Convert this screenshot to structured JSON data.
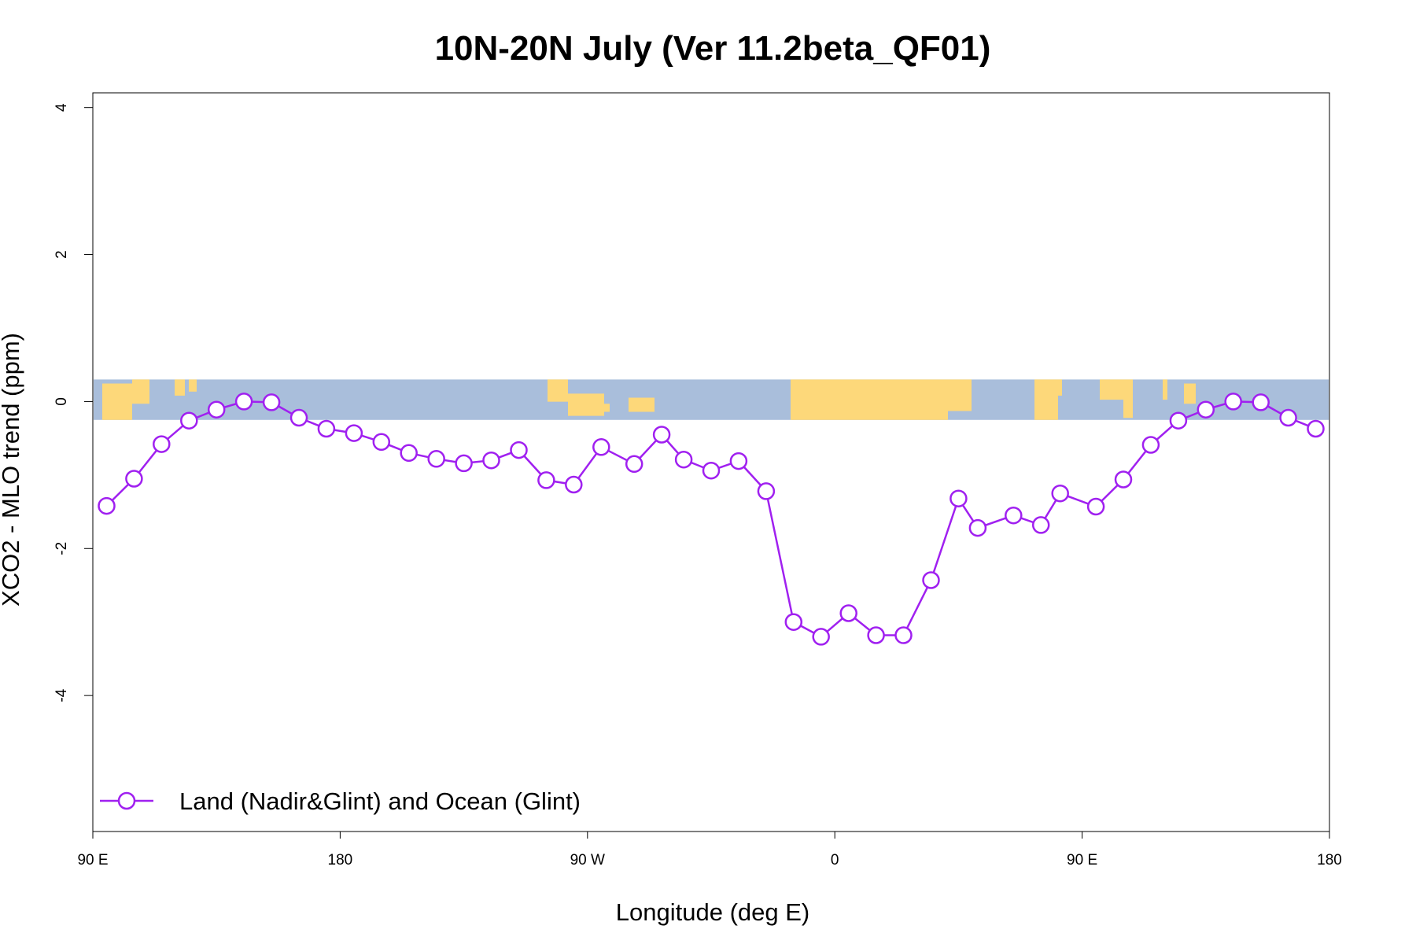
{
  "chart_data": {
    "type": "line",
    "title": "10N-20N July (Ver 11.2beta_QF01)",
    "xlabel": "Longitude (deg E)",
    "ylabel": "XCO2 - MLO trend (ppm)",
    "xlim": [
      90,
      540
    ],
    "ylim": [
      -5.85,
      4.2
    ],
    "x_ticks": [
      {
        "value": 90,
        "label": "90 E"
      },
      {
        "value": 180,
        "label": "180"
      },
      {
        "value": 270,
        "label": "90 W"
      },
      {
        "value": 360,
        "label": "0"
      },
      {
        "value": 450,
        "label": "90 E"
      },
      {
        "value": 540,
        "label": "180"
      }
    ],
    "y_ticks": [
      {
        "value": 4,
        "label": "4"
      },
      {
        "value": 2,
        "label": "2"
      },
      {
        "value": 0,
        "label": "0"
      },
      {
        "value": -2,
        "label": "-2"
      },
      {
        "value": -4,
        "label": "-4"
      }
    ],
    "grid": false,
    "legend_position": "bottom-left",
    "map_strip": {
      "y_top": 0.3,
      "y_bottom": -0.25,
      "ocean_color": "#a9bedb",
      "land_color": "#fdd87a"
    },
    "series": [
      {
        "name": "Land (Nadir&Glint) and Ocean (Glint)",
        "color": "#a020f0",
        "marker": "open-circle",
        "x": [
          95,
          105,
          115,
          125,
          135,
          145,
          155,
          165,
          175,
          185,
          195,
          205,
          215,
          225,
          235,
          245,
          255,
          265,
          275,
          287,
          297,
          305,
          315,
          325,
          335,
          345,
          355,
          365,
          375,
          385,
          395,
          405,
          412,
          425,
          435,
          442,
          455,
          465,
          475,
          485,
          495,
          505,
          515,
          525,
          535
        ],
        "values": [
          -1.42,
          -1.05,
          -0.58,
          -0.26,
          -0.11,
          0.0,
          -0.01,
          -0.22,
          -0.37,
          -0.43,
          -0.55,
          -0.7,
          -0.78,
          -0.84,
          -0.8,
          -0.66,
          -1.07,
          -1.13,
          -0.62,
          -0.85,
          -0.45,
          -0.79,
          -0.94,
          -0.81,
          -1.22,
          -3.0,
          -3.2,
          -2.88,
          -3.18,
          -3.18,
          -2.43,
          -1.32,
          -1.72,
          -1.55,
          -1.68,
          -1.25,
          -1.43,
          -1.06,
          -0.59,
          -0.26,
          -0.11,
          0.0,
          -0.01,
          -0.22,
          -0.37
        ]
      }
    ]
  }
}
